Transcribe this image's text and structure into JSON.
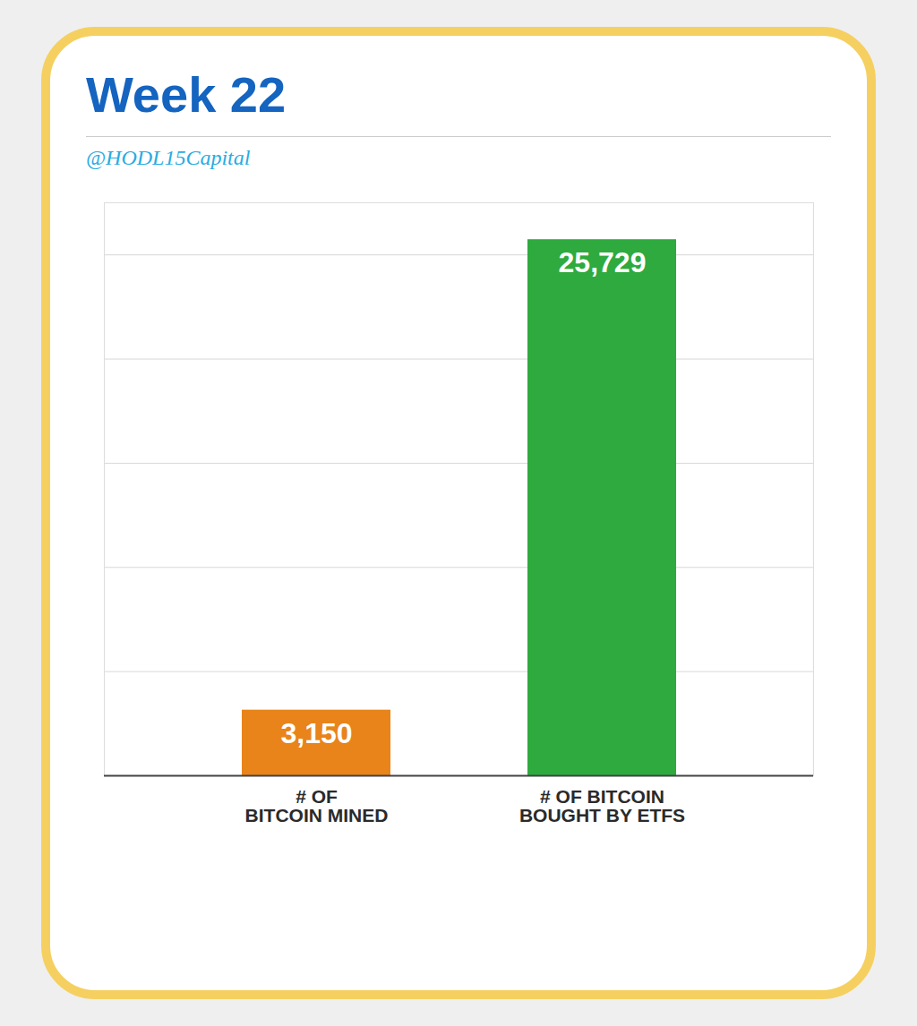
{
  "chart_data": {
    "type": "bar",
    "title": "Week 22",
    "subtitle": "@HODL15Capital",
    "categories": [
      "# OF\nBITCOIN MINED",
      "# OF BITCOIN\nBOUGHT BY ETFS"
    ],
    "values": [
      3150,
      25729
    ],
    "value_labels": [
      "3,150",
      "25,729"
    ],
    "colors": [
      "#E8841A",
      "#2EAA3E"
    ],
    "ylim": [
      0,
      27500
    ],
    "yticks": [
      0,
      5000,
      10000,
      15000,
      20000,
      25000
    ],
    "grid": true,
    "data_labels": true,
    "tick_labels": "x"
  }
}
